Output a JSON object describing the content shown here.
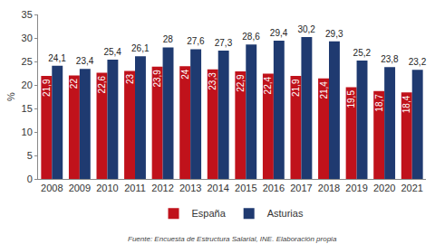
{
  "chart_data": {
    "type": "bar",
    "y_label": "%",
    "categories": [
      "2008",
      "2009",
      "2010",
      "2011",
      "2012",
      "2013",
      "2014",
      "2015",
      "2016",
      "2017",
      "2018",
      "2019",
      "2020",
      "2021"
    ],
    "series": [
      {
        "name": "España",
        "color": "#c0121b",
        "values": [
          21.9,
          22,
          22.6,
          23,
          23.9,
          24,
          23.3,
          22.9,
          22.4,
          21.9,
          21.4,
          19.5,
          18.7,
          18.4
        ],
        "value_labels": [
          "21,9",
          "22",
          "22,6",
          "23",
          "23,9",
          "24",
          "23,3",
          "22,9",
          "22,4",
          "21,9",
          "21,4",
          "19,5",
          "18,7",
          "18,4"
        ]
      },
      {
        "name": "Asturias",
        "color": "#1f3a70",
        "values": [
          24.1,
          23.4,
          25.4,
          26.1,
          28,
          27.6,
          27.3,
          28.6,
          29.4,
          30.2,
          29.3,
          25.2,
          23.8,
          23.2
        ],
        "value_labels": [
          "24,1",
          "23,4",
          "25,4",
          "26,1",
          "28",
          "27,6",
          "27,3",
          "28,6",
          "29,4",
          "30,2",
          "29,3",
          "25,2",
          "23,8",
          "23,2"
        ]
      }
    ],
    "ylim": [
      0,
      35
    ],
    "yticks": [
      0,
      5,
      10,
      15,
      20,
      25,
      30,
      35
    ],
    "grid": false,
    "legend": "bottom",
    "data_labels": true,
    "annotations": [
      "Fuente: Encuesta de Estructura Salarial, INE. Elaboración propia"
    ]
  }
}
